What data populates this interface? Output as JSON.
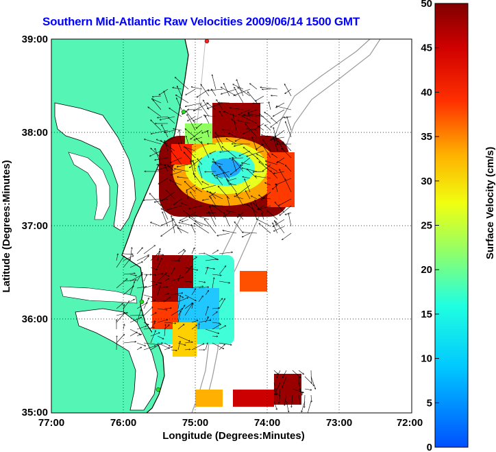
{
  "title": "Southern Mid-Atlantic Raw Velocities 2009/06/14 1500 GMT",
  "map": {
    "xlabel": "Longitude (Degrees:Minutes)",
    "ylabel": "Latitude (Degrees:Minutes)",
    "x_ticks": [
      "77:00",
      "76:00",
      "75:00",
      "74:00",
      "73:00",
      "72:00"
    ],
    "y_ticks": [
      "39:00",
      "38:00",
      "37:00",
      "36:00",
      "35:00"
    ],
    "lon_range": [
      -77,
      -72
    ],
    "lat_range": [
      35,
      39
    ],
    "land_color": "#55f5b5",
    "grid": "dotted"
  },
  "colorbar": {
    "label": "Surface Velocity (cm/s)",
    "ticks": [
      "50",
      "45",
      "40",
      "35",
      "30",
      "25",
      "20",
      "15",
      "10",
      "5",
      "0"
    ],
    "range": [
      0,
      50
    ],
    "colormap": "jet"
  }
}
